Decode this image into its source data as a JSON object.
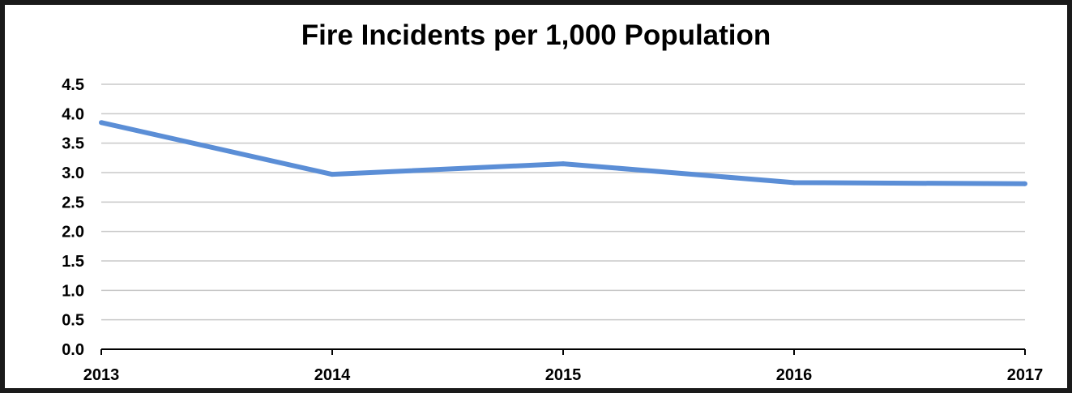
{
  "chart_data": {
    "type": "line",
    "title": "Fire Incidents per 1,000 Population",
    "xlabel": "",
    "ylabel": "",
    "categories": [
      "2013",
      "2014",
      "2015",
      "2016",
      "2017"
    ],
    "series": [
      {
        "values": [
          3.85,
          2.97,
          3.15,
          2.83,
          2.81
        ],
        "color": "#5b8ed6"
      }
    ],
    "ylim": [
      0,
      4.5
    ],
    "yticks": [
      0.0,
      0.5,
      1.0,
      1.5,
      2.0,
      2.5,
      3.0,
      3.5,
      4.0,
      4.5
    ],
    "ytick_labels": [
      "0.0",
      "0.5",
      "1.0",
      "1.5",
      "2.0",
      "2.5",
      "3.0",
      "3.5",
      "4.0",
      "4.5"
    ],
    "grid": true,
    "legend": "none",
    "colors": {
      "gridline": "#c8c8c8",
      "axis": "#000000",
      "frame": "#1a1a1a"
    }
  }
}
